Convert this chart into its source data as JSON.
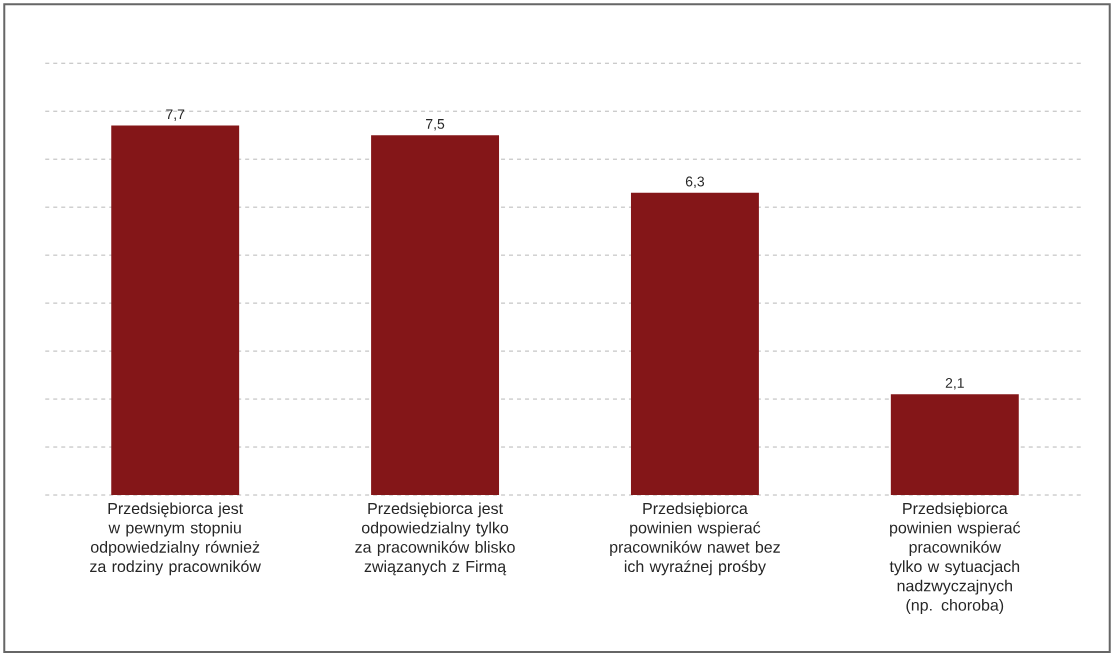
{
  "chart_data": {
    "type": "bar",
    "categories": [
      "Przedsiębiorca jest w pewnym stopniu odpowiedzialny również za rodziny pracowników",
      "Przedsiębiorca jest odpowiedzialny tylko za pracowników blisko związanych z Firmą",
      "Przedsiębiorca powinien wspierać pracowników nawet bez ich wyraźnej prośby",
      "Przedsiębiorca powinien wspierać pracowników tylko w sytuacjach nadzwyczajnych (np. choroba)"
    ],
    "values": [
      7.7,
      7.5,
      6.3,
      2.1
    ],
    "value_labels": [
      "7,7",
      "7,5",
      "6,3",
      "2,1"
    ],
    "color": "#841618",
    "ylim": [
      0,
      9
    ],
    "yticks": [
      {
        "value": 0,
        "label": null
      },
      {
        "value": 1,
        "label": null
      },
      {
        "value": 2,
        "label": null
      },
      {
        "value": 3,
        "label": null
      },
      {
        "value": 4,
        "label": null
      },
      {
        "value": 5,
        "label": null
      },
      {
        "value": 6,
        "label": null
      },
      {
        "value": 7,
        "label": null
      },
      {
        "value": 8,
        "label": null
      },
      {
        "value": 9,
        "label": null
      }
    ],
    "grid": "y",
    "tick_labels": "x"
  }
}
